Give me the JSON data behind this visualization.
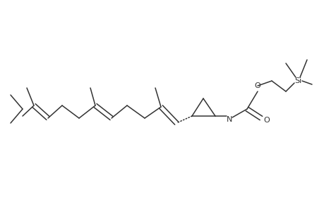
{
  "bg_color": "#ffffff",
  "line_color": "#333333",
  "line_width": 1.1,
  "figsize": [
    4.6,
    3.0
  ],
  "dpi": 100,
  "xlim": [
    0,
    46
  ],
  "ylim": [
    0,
    30
  ]
}
